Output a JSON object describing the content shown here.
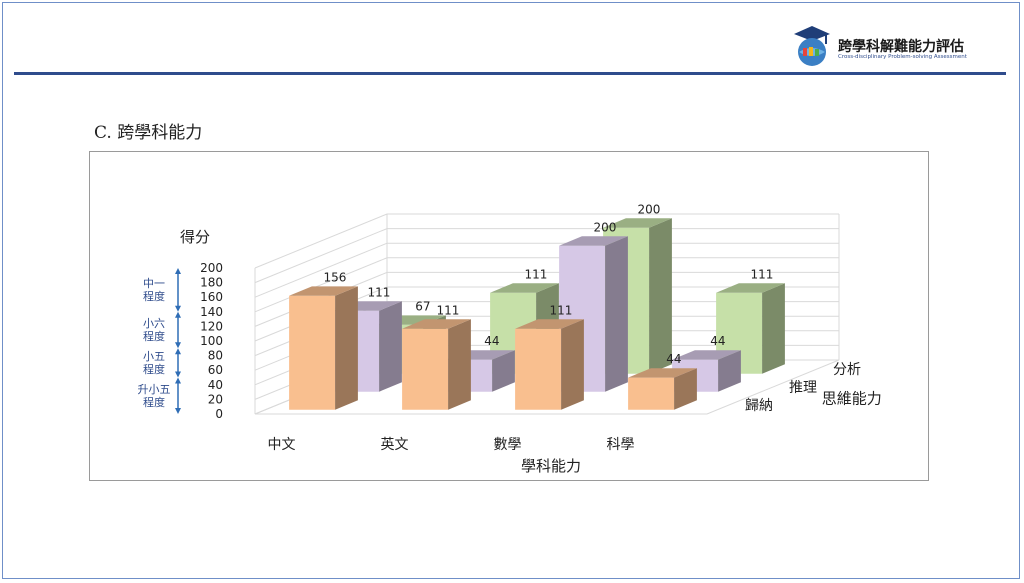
{
  "header": {
    "logo_title": "跨學科解難能力評估",
    "logo_subtitle": "Cross-disciplinary Problem-solving Assessment",
    "logo_icon": "graduation-cap-globe-icon"
  },
  "section_title": "C. 跨學科能力",
  "colors": {
    "rule": "#2f4c8c",
    "series_歸納": "#f9bf8f",
    "series_推理": "#d6c8e6",
    "series_分析": "#c6e0a8",
    "bracket": "#2f6db5"
  },
  "chart_data": {
    "type": "bar",
    "subtype": "3d-column",
    "ylabel": "得分",
    "xlabel": "學科能力",
    "zlabel": "思維能力",
    "categories": [
      "中文",
      "英文",
      "數學",
      "科學"
    ],
    "series": [
      {
        "name": "歸納",
        "values": [
          156,
          111,
          111,
          44
        ]
      },
      {
        "name": "推理",
        "values": [
          111,
          44,
          200,
          44
        ]
      },
      {
        "name": "分析",
        "values": [
          67,
          111,
          200,
          111
        ]
      }
    ],
    "ylim": [
      0,
      200
    ],
    "yticks": [
      "0",
      "20",
      "40",
      "60",
      "80",
      "100",
      "120",
      "140",
      "160",
      "180",
      "200"
    ],
    "grid": true,
    "legend": "none",
    "level_brackets": [
      {
        "label_line1": "中一",
        "label_line2": "程度",
        "range": [
          140,
          200
        ]
      },
      {
        "label_line1": "小六",
        "label_line2": "程度",
        "range": [
          90,
          140
        ]
      },
      {
        "label_line1": "小五",
        "label_line2": "程度",
        "range": [
          50,
          90
        ]
      },
      {
        "label_line1": "升小五",
        "label_line2": "程度",
        "range": [
          0,
          50
        ]
      }
    ]
  }
}
